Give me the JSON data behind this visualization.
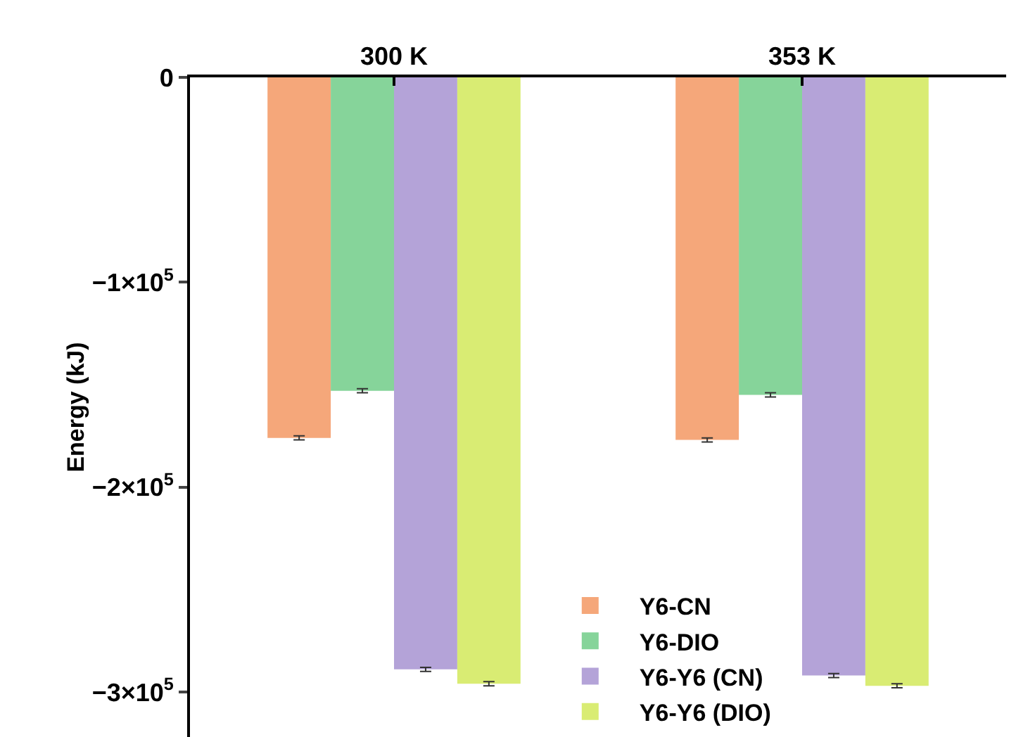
{
  "chart_data": {
    "type": "bar",
    "categories": [
      "300 K",
      "353 K"
    ],
    "ylabel": "Energy (kJ)",
    "series": [
      {
        "name": "Y6-CN",
        "color": "#f5a77a",
        "values": [
          -176000,
          -177000
        ],
        "errors": [
          1000,
          1000
        ]
      },
      {
        "name": "Y6-DIO",
        "color": "#86d49a",
        "values": [
          -153000,
          -155000
        ],
        "errors": [
          1000,
          1000
        ]
      },
      {
        "name": "Y6-Y6 (CN)",
        "color": "#b4a3d8",
        "values": [
          -289000,
          -292000
        ],
        "errors": [
          1000,
          1000
        ]
      },
      {
        "name": "Y6-Y6 (DIO)",
        "color": "#d9ec73",
        "values": [
          -296000,
          -297000
        ],
        "errors": [
          1000,
          1000
        ]
      }
    ],
    "ylim": [
      -322000,
      0
    ],
    "yticks": [
      0,
      {
        "value": -100000,
        "label": "−1×10$^{5}$"
      },
      {
        "value": -200000,
        "label": "−2×10$^{5}$"
      },
      {
        "value": -300000,
        "label": "−3×10$^{5}$"
      }
    ],
    "grid": false,
    "legend": "bottom right"
  }
}
